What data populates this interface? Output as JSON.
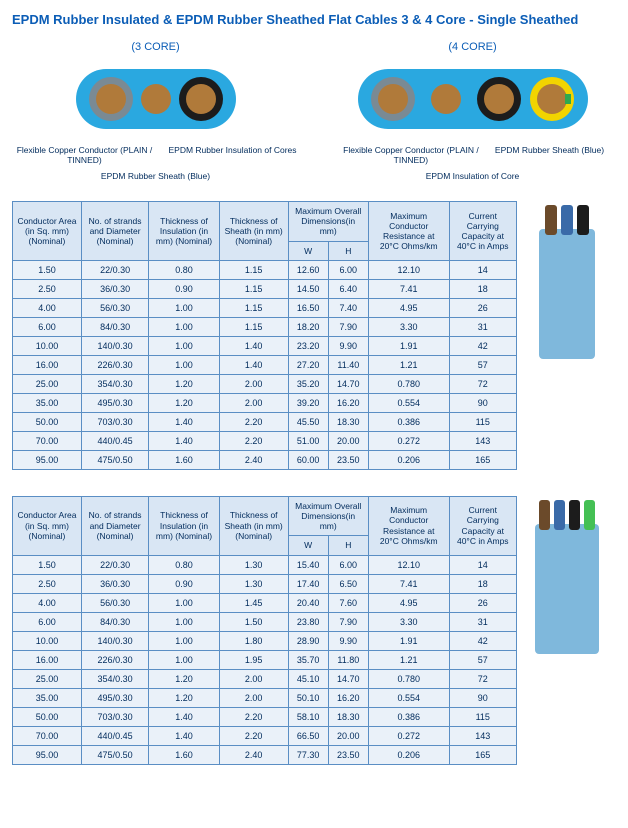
{
  "title": "EPDM Rubber Insulated & EPDM Rubber Sheathed Flat Cables 3 & 4 Core - Single Sheathed",
  "diagrams": {
    "core3": {
      "heading": "(3 CORE)",
      "callouts": {
        "conductor": "Flexible Copper Conductor (PLAIN / TINNED)",
        "insulation": "EPDM Rubber Insulation of Cores",
        "sheath": "EPDM Rubber Sheath (Blue)"
      },
      "colors": {
        "sheath": "#2aa8e0",
        "cores": [
          "#7a8a94",
          "#2aa8e0",
          "#1c1c1c"
        ],
        "copper": "#b07a3a"
      }
    },
    "core4": {
      "heading": "(4 CORE)",
      "callouts": {
        "conductor": "Flexible Copper Conductor (PLAIN / TINNED)",
        "sheath": "EPDM Rubber Sheath (Blue)",
        "insulation": "EPDM Insulation of Core"
      },
      "colors": {
        "sheath": "#2aa8e0",
        "cores": [
          "#7a8a94",
          "#2aa8e0",
          "#1c1c1c",
          "#f2d400"
        ],
        "copper": "#b07a3a"
      }
    }
  },
  "tables": {
    "columns": {
      "c1": "Conductor Area (in Sq. mm) (Nominal)",
      "c2": "No. of strands and Diameter (Nominal)",
      "c3": "Thickness of Insulation (in mm) (Nominal)",
      "c4": "Thickness of Sheath (in mm) (Nominal)",
      "c5": "Maximum Overall Dimensions(in mm)",
      "c5a": "W",
      "c5b": "H",
      "c6": "Maximum Conductor Resistance at 20°C Ohms/km",
      "c7": "Current Carrying Capacity at 40°C in Amps"
    },
    "table3": [
      [
        "1.50",
        "22/0.30",
        "0.80",
        "1.15",
        "12.60",
        "6.00",
        "12.10",
        "14"
      ],
      [
        "2.50",
        "36/0.30",
        "0.90",
        "1.15",
        "14.50",
        "6.40",
        "7.41",
        "18"
      ],
      [
        "4.00",
        "56/0.30",
        "1.00",
        "1.15",
        "16.50",
        "7.40",
        "4.95",
        "26"
      ],
      [
        "6.00",
        "84/0.30",
        "1.00",
        "1.15",
        "18.20",
        "7.90",
        "3.30",
        "31"
      ],
      [
        "10.00",
        "140/0.30",
        "1.00",
        "1.40",
        "23.20",
        "9.90",
        "1.91",
        "42"
      ],
      [
        "16.00",
        "226/0.30",
        "1.00",
        "1.40",
        "27.20",
        "11.40",
        "1.21",
        "57"
      ],
      [
        "25.00",
        "354/0.30",
        "1.20",
        "2.00",
        "35.20",
        "14.70",
        "0.780",
        "72"
      ],
      [
        "35.00",
        "495/0.30",
        "1.20",
        "2.00",
        "39.20",
        "16.20",
        "0.554",
        "90"
      ],
      [
        "50.00",
        "703/0.30",
        "1.40",
        "2.20",
        "45.50",
        "18.30",
        "0.386",
        "115"
      ],
      [
        "70.00",
        "440/0.45",
        "1.40",
        "2.20",
        "51.00",
        "20.00",
        "0.272",
        "143"
      ],
      [
        "95.00",
        "475/0.50",
        "1.60",
        "2.40",
        "60.00",
        "23.50",
        "0.206",
        "165"
      ]
    ],
    "table4": [
      [
        "1.50",
        "22/0.30",
        "0.80",
        "1.30",
        "15.40",
        "6.00",
        "12.10",
        "14"
      ],
      [
        "2.50",
        "36/0.30",
        "0.90",
        "1.30",
        "17.40",
        "6.50",
        "7.41",
        "18"
      ],
      [
        "4.00",
        "56/0.30",
        "1.00",
        "1.45",
        "20.40",
        "7.60",
        "4.95",
        "26"
      ],
      [
        "6.00",
        "84/0.30",
        "1.00",
        "1.50",
        "23.80",
        "7.90",
        "3.30",
        "31"
      ],
      [
        "10.00",
        "140/0.30",
        "1.00",
        "1.80",
        "28.90",
        "9.90",
        "1.91",
        "42"
      ],
      [
        "16.00",
        "226/0.30",
        "1.00",
        "1.95",
        "35.70",
        "11.80",
        "1.21",
        "57"
      ],
      [
        "25.00",
        "354/0.30",
        "1.20",
        "2.00",
        "45.10",
        "14.70",
        "0.780",
        "72"
      ],
      [
        "35.00",
        "495/0.30",
        "1.20",
        "2.00",
        "50.10",
        "16.20",
        "0.554",
        "90"
      ],
      [
        "50.00",
        "703/0.30",
        "1.40",
        "2.20",
        "58.10",
        "18.30",
        "0.386",
        "115"
      ],
      [
        "70.00",
        "440/0.45",
        "1.40",
        "2.20",
        "66.50",
        "20.00",
        "0.272",
        "143"
      ],
      [
        "95.00",
        "475/0.50",
        "1.60",
        "2.40",
        "77.30",
        "23.50",
        "0.206",
        "165"
      ]
    ]
  },
  "photos": {
    "cable3": {
      "sheath": "#7fb8dc",
      "wires": [
        "#6b4a2a",
        "#3a6aa8",
        "#1c1c1c"
      ]
    },
    "cable4": {
      "sheath": "#7fb8dc",
      "wires": [
        "#6b4a2a",
        "#3a6aa8",
        "#1c1c1c",
        "#44c054"
      ]
    }
  }
}
